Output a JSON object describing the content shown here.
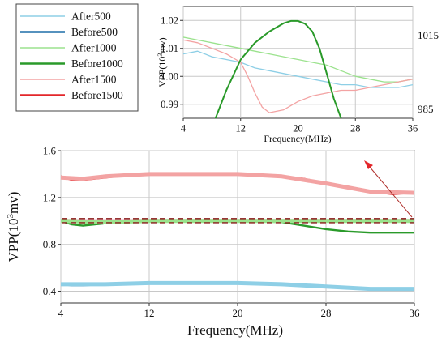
{
  "legend": {
    "items": [
      {
        "label": "After500",
        "color": "#8ecfe6",
        "width": 1.6
      },
      {
        "label": "Before500",
        "color": "#1f6ea8",
        "width": 2.6
      },
      {
        "label": "After1000",
        "color": "#9be28d",
        "width": 1.6
      },
      {
        "label": "Before1000",
        "color": "#2a9a2a",
        "width": 2.6
      },
      {
        "label": "After1500",
        "color": "#f3a3a3",
        "width": 1.6
      },
      {
        "label": "Before1500",
        "color": "#e3262a",
        "width": 2.6
      }
    ]
  },
  "chart_data": [
    {
      "id": "inset",
      "type": "line",
      "xlabel": "Frequency(MHz)",
      "ylabel": "VPP(10³mv)",
      "y2_ticks": [
        "1015",
        "985"
      ],
      "x_ticks": [
        4,
        12,
        20,
        28,
        36
      ],
      "y_ticks": [
        0.99,
        1.0,
        1.01,
        1.02
      ],
      "xlim": [
        4,
        36
      ],
      "ylim": [
        0.985,
        1.025
      ],
      "y2lim": [
        982,
        1022
      ],
      "series": [
        {
          "name": "After500",
          "color": "#8ecfe6",
          "x": [
            4,
            6,
            8,
            10,
            12,
            14,
            16,
            18,
            20,
            22,
            24,
            26,
            28,
            30,
            32,
            34,
            36
          ],
          "y": [
            1.008,
            1.009,
            1.007,
            1.006,
            1.005,
            1.003,
            1.002,
            1.001,
            1.0,
            0.999,
            0.998,
            0.997,
            0.997,
            0.996,
            0.996,
            0.996,
            0.997
          ]
        },
        {
          "name": "After1000",
          "color": "#9be28d",
          "x": [
            4,
            6,
            8,
            10,
            12,
            14,
            16,
            18,
            20,
            22,
            24,
            26,
            28,
            30,
            32,
            34,
            36
          ],
          "y": [
            1.014,
            1.013,
            1.012,
            1.011,
            1.01,
            1.009,
            1.008,
            1.007,
            1.006,
            1.005,
            1.004,
            1.002,
            1.0,
            0.999,
            0.998,
            0.998,
            0.999
          ]
        },
        {
          "name": "After1500",
          "color": "#f3a3a3",
          "x": [
            4,
            6,
            8,
            10,
            12,
            13,
            14,
            15,
            16,
            18,
            20,
            22,
            24,
            26,
            28,
            30,
            32,
            34,
            36
          ],
          "y": [
            1.013,
            1.012,
            1.01,
            1.008,
            1.005,
            1.0,
            0.994,
            0.989,
            0.987,
            0.988,
            0.991,
            0.993,
            0.994,
            0.995,
            0.995,
            0.996,
            0.997,
            0.998,
            0.999
          ]
        },
        {
          "name": "Before1000",
          "color": "#2a9a2a",
          "axis": "right",
          "x": [
            8.5,
            10,
            12,
            14,
            16,
            18,
            19,
            20,
            21,
            22,
            23,
            24,
            25,
            26
          ],
          "y": [
            982,
            992,
            1003,
            1009,
            1013,
            1016,
            1016.8,
            1016.8,
            1015.8,
            1013,
            1007,
            998,
            989,
            982
          ]
        }
      ]
    },
    {
      "id": "main",
      "type": "line",
      "xlabel": "Frequency(MHz)",
      "ylabel": "VPP(10³mv)",
      "x_ticks": [
        4,
        12,
        20,
        28,
        36
      ],
      "y_ticks": [
        0.4,
        0.8,
        1.2,
        1.6
      ],
      "xlim": [
        4,
        36
      ],
      "ylim": [
        0.3,
        1.6
      ],
      "series": [
        {
          "name": "Before1500",
          "color": "#e3262a",
          "x": [
            4,
            5,
            6,
            8,
            10,
            12,
            16,
            20,
            24,
            26,
            28,
            30,
            32,
            34,
            36
          ],
          "y": [
            1.38,
            1.35,
            1.35,
            1.37,
            1.39,
            1.4,
            1.4,
            1.4,
            1.38,
            1.36,
            1.32,
            1.28,
            1.25,
            1.23,
            1.24
          ]
        },
        {
          "name": "After1500",
          "color": "#f3a3a3",
          "x": [
            4,
            6,
            8,
            12,
            16,
            20,
            24,
            28,
            32,
            36
          ],
          "y": [
            1.37,
            1.36,
            1.38,
            1.4,
            1.4,
            1.4,
            1.38,
            1.32,
            1.25,
            1.24
          ]
        },
        {
          "name": "Before1000",
          "color": "#2a9a2a",
          "x": [
            4,
            5,
            6,
            8,
            12,
            16,
            20,
            24,
            26,
            28,
            30,
            32,
            34,
            36
          ],
          "y": [
            1.0,
            0.97,
            0.96,
            0.98,
            1.0,
            1.0,
            1.0,
            0.99,
            0.96,
            0.93,
            0.91,
            0.9,
            0.9,
            0.9
          ]
        },
        {
          "name": "After1000",
          "color": "#9be28d",
          "x": [
            4,
            8,
            12,
            16,
            20,
            24,
            28,
            32,
            36
          ],
          "y": [
            1.0,
            0.99,
            1.0,
            1.0,
            1.0,
            1.0,
            1.0,
            1.0,
            1.0
          ]
        },
        {
          "name": "Before500",
          "color": "#1f6ea8",
          "x": [
            4,
            5,
            6,
            8,
            12,
            16,
            20,
            24,
            28,
            32,
            34,
            36
          ],
          "y": [
            0.46,
            0.45,
            0.45,
            0.46,
            0.47,
            0.47,
            0.47,
            0.46,
            0.44,
            0.42,
            0.42,
            0.42
          ]
        },
        {
          "name": "After500",
          "color": "#8ecfe6",
          "x": [
            4,
            8,
            12,
            16,
            20,
            24,
            28,
            32,
            36
          ],
          "y": [
            0.46,
            0.46,
            0.47,
            0.47,
            0.47,
            0.46,
            0.44,
            0.42,
            0.42
          ]
        }
      ],
      "dashed_lines": [
        {
          "y": 1.02,
          "color": "#8a1a1a"
        },
        {
          "y": 0.985,
          "color": "#8a1a1a"
        }
      ]
    }
  ]
}
